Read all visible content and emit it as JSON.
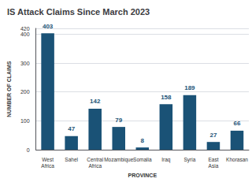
{
  "chart_data": {
    "type": "bar",
    "title": "IS Attack Claims Since March 2023",
    "categories": [
      "West\nAfrica",
      "Sahel",
      "Central\nAfrica",
      "Mozambique",
      "Somalia",
      "Iraq",
      "Syria",
      "East\nAsia",
      "Khorasan"
    ],
    "values": [
      403,
      47,
      142,
      79,
      8,
      158,
      189,
      27,
      66
    ],
    "color": "#1a5276",
    "xlabel": "PROVINCE",
    "ylabel": "NUMBER OF CLAIMS",
    "ylim": [
      0,
      420
    ],
    "yticks": [
      0,
      100,
      200,
      300,
      400
    ],
    "grid": true,
    "data_labels": true
  }
}
